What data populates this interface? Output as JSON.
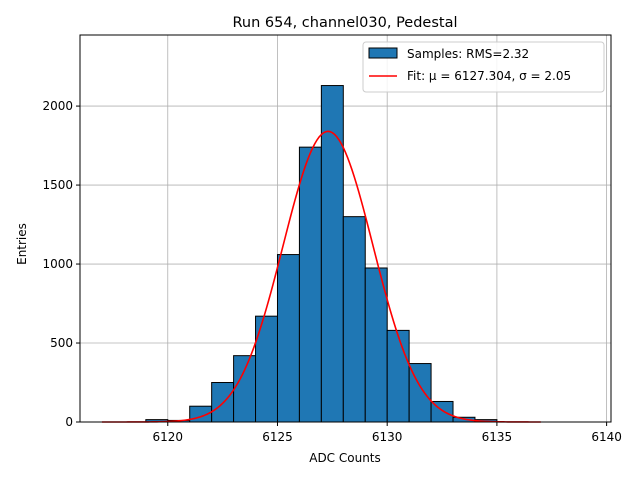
{
  "chart_data": {
    "type": "bar",
    "title": "Run 654, channel030, Pedestal",
    "xlabel": "ADC Counts",
    "ylabel": "Entries",
    "xlim": [
      6116,
      6140.2
    ],
    "ylim": [
      0,
      2450
    ],
    "xticks": [
      6120,
      6125,
      6130,
      6135,
      6140
    ],
    "yticks": [
      0,
      500,
      1000,
      1500,
      2000
    ],
    "grid": true,
    "legend_position": "top-right",
    "colors": {
      "bars": "#1f77b4",
      "bar_edge": "#000000",
      "fit": "#ff0000",
      "grid": "#b0b0b0"
    },
    "histogram": {
      "name": "Samples: RMS=2.32",
      "bin_width": 1,
      "bins": [
        {
          "left": 6119,
          "count": 15
        },
        {
          "left": 6120,
          "count": 10
        },
        {
          "left": 6121,
          "count": 100
        },
        {
          "left": 6122,
          "count": 250
        },
        {
          "left": 6123,
          "count": 420
        },
        {
          "left": 6124,
          "count": 670
        },
        {
          "left": 6125,
          "count": 1060
        },
        {
          "left": 6126,
          "count": 1740
        },
        {
          "left": 6127,
          "count": 2130
        },
        {
          "left": 6128,
          "count": 1300
        },
        {
          "left": 6129,
          "count": 975
        },
        {
          "left": 6130,
          "count": 580
        },
        {
          "left": 6131,
          "count": 370
        },
        {
          "left": 6132,
          "count": 130
        },
        {
          "left": 6133,
          "count": 30
        },
        {
          "left": 6134,
          "count": 15
        }
      ]
    },
    "fit": {
      "name": "Fit: μ = 6127.304, σ = 2.05",
      "mu": 6127.304,
      "sigma": 2.05,
      "amplitude": 1840,
      "x_range": [
        6117,
        6137
      ]
    }
  }
}
